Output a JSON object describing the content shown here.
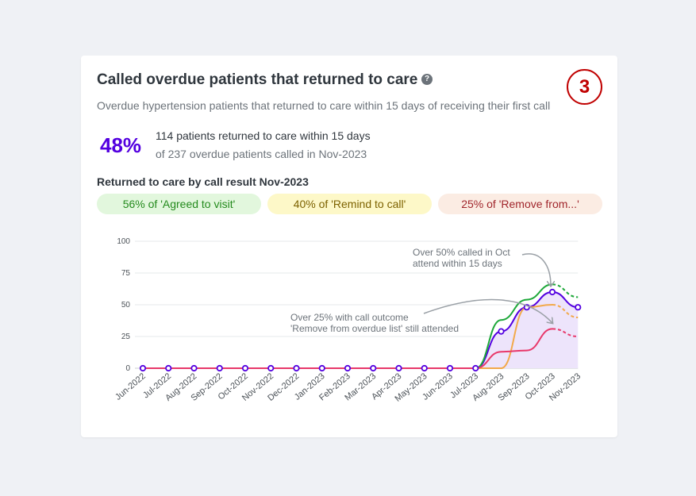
{
  "card": {
    "title": "Called overdue patients that returned to care",
    "help_icon": "question-circle-icon",
    "help_glyph": "?",
    "step_badge": "3",
    "subtitle": "Overdue hypertension patients that returned to care within 15 days of receiving their first call"
  },
  "summary": {
    "percent": "48%",
    "main": "114 patients returned to care within 15 days",
    "sub": "of 237 overdue patients called in Nov-2023"
  },
  "breakdown": {
    "title": "Returned to care by call result Nov-2023",
    "pills": [
      {
        "label": "56% of 'Agreed to visit'",
        "color": "#238a1c"
      },
      {
        "label": "40% of 'Remind to call'",
        "color": "#7d6200"
      },
      {
        "label": "25% of 'Remove from...'",
        "color": "#a1262c"
      }
    ]
  },
  "chart_data": {
    "type": "line",
    "x": [
      "Jun-2022",
      "Jul-2022",
      "Aug-2022",
      "Sep-2022",
      "Oct-2022",
      "Nov-2022",
      "Dec-2022",
      "Jan-2023",
      "Feb-2023",
      "Mar-2023",
      "Apr-2023",
      "May-2023",
      "Jun-2023",
      "Jul-2023",
      "Aug-2023",
      "Sep-2023",
      "Oct-2023",
      "Nov-2023"
    ],
    "ylim": [
      0,
      100
    ],
    "yticks": [
      0,
      25,
      50,
      75,
      100
    ],
    "grid": true,
    "series": [
      {
        "color": "#5300e0",
        "fill": "#ede4fb",
        "markers": true,
        "dashed_last": false,
        "values": [
          0,
          0,
          0,
          0,
          0,
          0,
          0,
          0,
          0,
          0,
          0,
          0,
          0,
          0,
          29,
          48,
          60,
          48
        ]
      },
      {
        "color": "#1ea83a",
        "markers": false,
        "dashed_last": true,
        "values": [
          0,
          0,
          0,
          0,
          0,
          0,
          0,
          0,
          0,
          0,
          0,
          0,
          0,
          0,
          38,
          54,
          66,
          56
        ]
      },
      {
        "color": "#f2a94a",
        "markers": false,
        "dashed_last": true,
        "values": [
          0,
          0,
          0,
          0,
          0,
          0,
          0,
          0,
          0,
          0,
          0,
          0,
          0,
          0,
          0,
          48,
          50,
          40
        ]
      },
      {
        "color": "#e8386a",
        "markers": false,
        "dashed_last": true,
        "values": [
          0,
          0,
          0,
          0,
          0,
          0,
          0,
          0,
          0,
          0,
          0,
          0,
          0,
          0,
          13,
          14,
          31,
          25
        ]
      }
    ],
    "annotations": [
      {
        "lines": [
          "Over 50% called in Oct",
          "attend within 15 days"
        ]
      },
      {
        "lines": [
          "Over 25% with call outcome",
          "'Remove from overdue list' still attended"
        ]
      }
    ]
  }
}
